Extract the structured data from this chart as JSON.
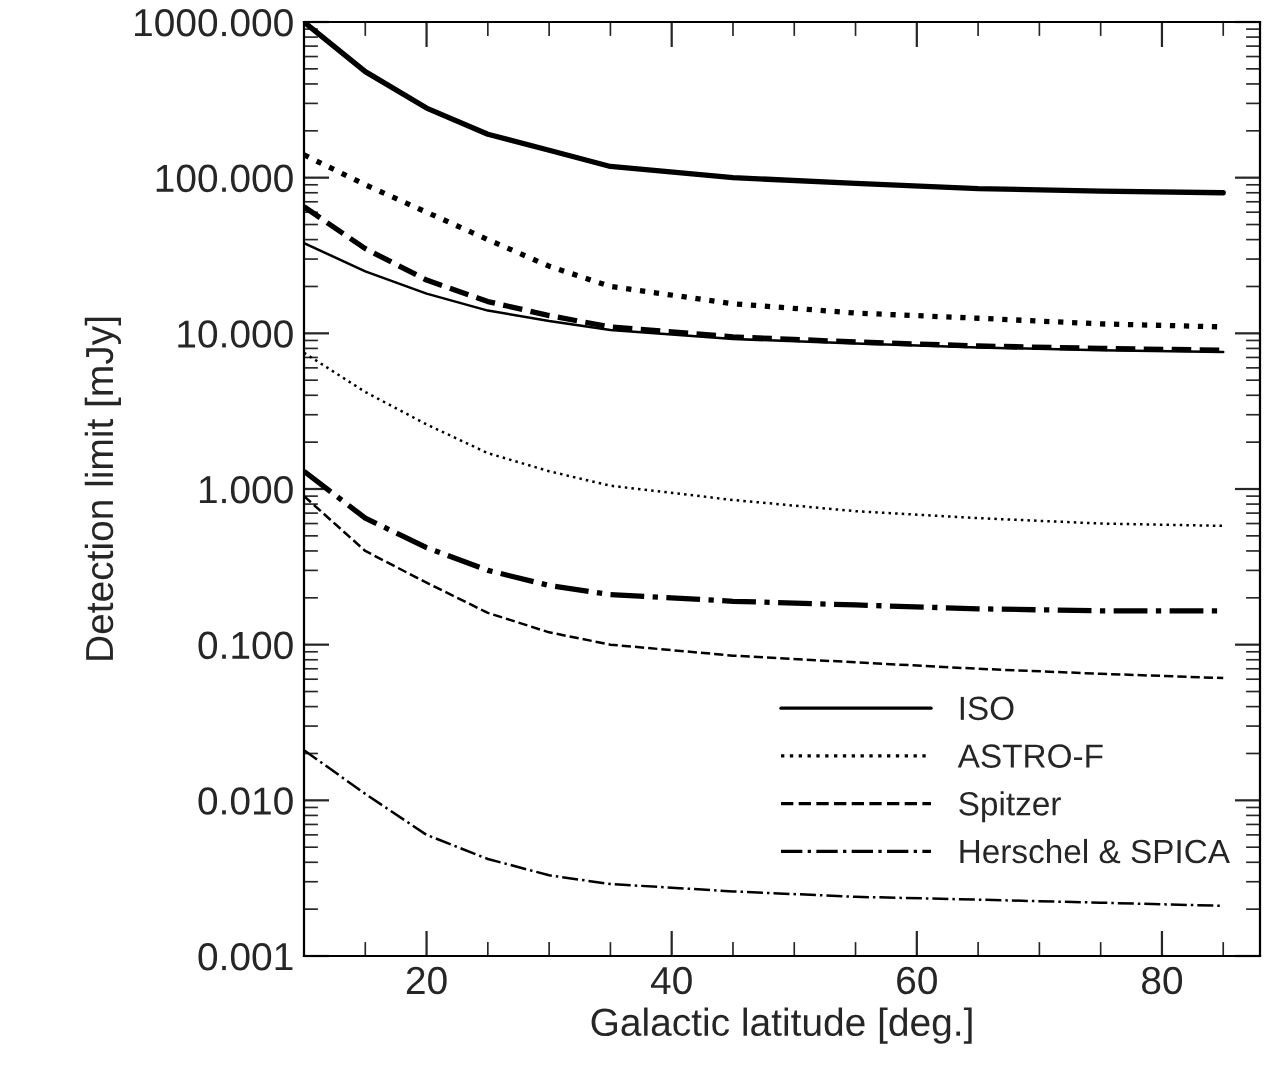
{
  "chart_data": {
    "type": "line",
    "xlabel": "Galactic latitude [deg.]",
    "ylabel": "Detection limit [mJy]",
    "log": "y",
    "xlim": [
      10,
      88
    ],
    "ylim": [
      0.001,
      1000
    ],
    "xticks": [
      20,
      40,
      60,
      80
    ],
    "yticks": [
      {
        "value": 0.001,
        "label": "0.001"
      },
      {
        "value": 0.01,
        "label": "0.010"
      },
      {
        "value": 0.1,
        "label": "0.100"
      },
      {
        "value": 1,
        "label": "1.000"
      },
      {
        "value": 10,
        "label": "10.000"
      },
      {
        "value": 100,
        "label": "100.000"
      },
      {
        "value": 1000,
        "label": "1000.000"
      }
    ],
    "legend": "bottom right",
    "grid": false,
    "color": "#000000",
    "series": [
      {
        "name": "ISO",
        "line_style": "solid",
        "x": [
          10,
          15,
          20,
          25,
          30,
          35,
          45,
          55,
          65,
          75,
          85
        ],
        "values": [
          1000,
          480,
          280,
          190,
          150,
          118,
          100,
          92,
          85,
          82,
          80
        ]
      },
      {
        "name": "ASTRO-F",
        "line_style": "dotted",
        "x": [
          10,
          15,
          20,
          25,
          30,
          35,
          45,
          55,
          65,
          75,
          85
        ],
        "values": [
          140,
          90,
          60,
          40,
          27,
          20,
          15.5,
          13.5,
          12.5,
          11.5,
          11
        ]
      },
      {
        "name": "Spitzer",
        "line_style": "dashed",
        "x": [
          10,
          15,
          20,
          25,
          30,
          35,
          45,
          55,
          65,
          75,
          85
        ],
        "values": [
          65,
          35,
          22,
          16,
          13,
          11,
          9.5,
          8.8,
          8.3,
          8,
          7.8
        ]
      },
      {
        "name": "Herschel & SPICA",
        "line_style": "dashdot",
        "x": [
          10,
          15,
          20,
          25,
          30,
          35,
          45,
          55,
          65,
          75,
          85
        ],
        "values": [
          1.3,
          0.65,
          0.42,
          0.3,
          0.24,
          0.21,
          0.19,
          0.18,
          0.17,
          0.165,
          0.165
        ]
      },
      {
        "line_style": "solid",
        "x": [
          10,
          15,
          20,
          25,
          30,
          35,
          45,
          55,
          65,
          75,
          85
        ],
        "values": [
          38,
          25,
          18,
          14,
          12,
          10.5,
          9.2,
          8.6,
          8.1,
          7.8,
          7.6
        ]
      },
      {
        "line_style": "dotted",
        "x": [
          10,
          15,
          20,
          25,
          30,
          35,
          45,
          55,
          65,
          75,
          85
        ],
        "values": [
          7.5,
          4.2,
          2.6,
          1.7,
          1.3,
          1.05,
          0.85,
          0.72,
          0.65,
          0.6,
          0.58
        ]
      },
      {
        "line_style": "dashed",
        "x": [
          10,
          15,
          20,
          25,
          30,
          35,
          45,
          55,
          65,
          75,
          85
        ],
        "values": [
          0.9,
          0.4,
          0.25,
          0.16,
          0.12,
          0.1,
          0.085,
          0.077,
          0.07,
          0.065,
          0.061
        ]
      },
      {
        "line_style": "dashdot",
        "x": [
          10,
          15,
          20,
          25,
          30,
          35,
          45,
          55,
          65,
          75,
          85
        ],
        "values": [
          0.021,
          0.011,
          0.006,
          0.0042,
          0.0033,
          0.0029,
          0.0026,
          0.0024,
          0.0023,
          0.0022,
          0.0021
        ]
      }
    ]
  }
}
